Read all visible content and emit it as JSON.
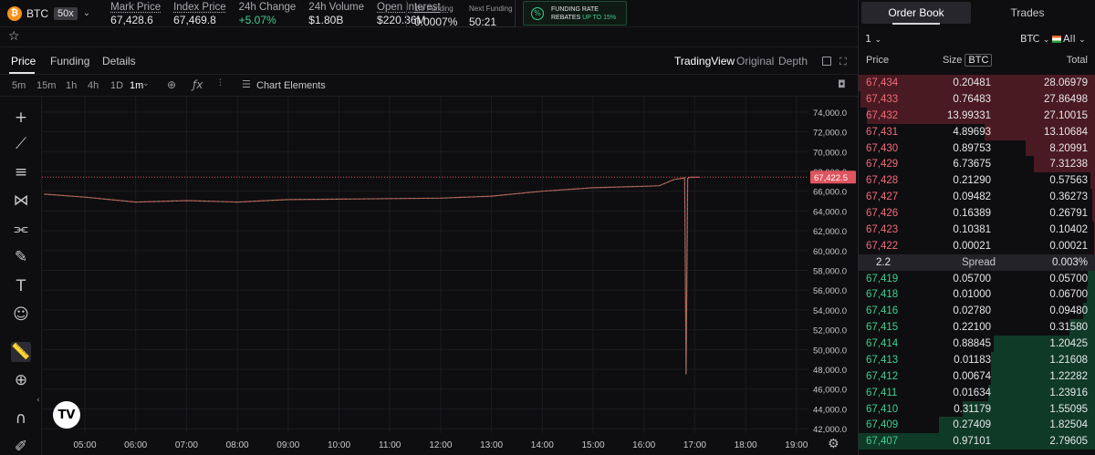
{
  "header": {
    "asset": "BTC",
    "leverage": "50x",
    "stats": [
      {
        "label": "Mark Price",
        "value": "67,428.6",
        "underline": true
      },
      {
        "label": "Index Price",
        "value": "67,469.8",
        "underline": true
      },
      {
        "label": "24h Change",
        "value": "+5.07%",
        "underline": false,
        "color": "#3ecf8e"
      },
      {
        "label": "24h Volume",
        "value": "$1.80B",
        "underline": false
      },
      {
        "label": "Open Interest",
        "value": "$220.36M",
        "underline": true
      }
    ],
    "funding_label": "1hr Funding",
    "funding_value": "0.0007%",
    "next_funding_label": "Next Funding",
    "next_funding_value": "50:21",
    "promo_line1": "FUNDING RATE",
    "promo_line2_prefix": "REBATES ",
    "promo_line2_highlight": "UP TO 15%"
  },
  "tabs": {
    "items": [
      "Price",
      "Funding",
      "Details"
    ],
    "views": [
      "TradingView",
      "Original",
      "Depth"
    ]
  },
  "toolbar": {
    "timeframes": [
      "5m",
      "15m",
      "1h",
      "4h",
      "1D",
      "1m"
    ],
    "active_timeframe": "1m",
    "chart_elements_label": "Chart Elements"
  },
  "chart_data": {
    "type": "line",
    "last_price_label": "67,422.5",
    "last_price": 67422.5,
    "ylim": [
      41000,
      75000
    ],
    "y_ticks": [
      42000,
      44000,
      46000,
      48000,
      50000,
      52000,
      54000,
      56000,
      58000,
      60000,
      62000,
      64000,
      66000,
      68000,
      70000,
      72000,
      74000
    ],
    "y_tick_labels": [
      "42,000.0",
      "44,000.0",
      "46,000.0",
      "48,000.0",
      "50,000.0",
      "52,000.0",
      "54,000.0",
      "56,000.0",
      "58,000.0",
      "60,000.0",
      "62,000.0",
      "64,000.0",
      "66,000.0",
      "68,000.0",
      "70,000.0",
      "72,000.0",
      "74,000.0"
    ],
    "x_tick_labels": [
      "05:00",
      "06:00",
      "07:00",
      "08:00",
      "09:00",
      "10:00",
      "11:00",
      "12:00",
      "13:00",
      "14:00",
      "15:00",
      "16:00",
      "17:00",
      "18:00",
      "19:00"
    ],
    "x_hours": [
      4.2,
      5,
      6,
      7,
      8,
      9,
      10,
      11,
      12,
      13,
      14,
      15,
      16,
      16.3,
      16.6,
      16.75,
      16.8,
      16.83,
      16.86,
      16.9,
      17.1
    ],
    "series_close": [
      65700,
      65400,
      64900,
      65050,
      64900,
      65150,
      65200,
      65250,
      65300,
      65500,
      66000,
      66350,
      66500,
      66550,
      67200,
      67300,
      67350,
      47500,
      67300,
      67400,
      67420
    ],
    "grid": true
  },
  "orderbook": {
    "tabs": [
      "Order Book",
      "Trades"
    ],
    "group": "1",
    "unit": "BTC",
    "filter": "All",
    "headers": {
      "price": "Price",
      "size": "Size",
      "size_unit": "BTC",
      "total": "Total"
    },
    "asks": [
      {
        "price": "67,434",
        "size": "0.20481",
        "total": "28.06979",
        "depth": 1.0
      },
      {
        "price": "67,433",
        "size": "0.76483",
        "total": "27.86498",
        "depth": 0.993
      },
      {
        "price": "67,432",
        "size": "13.99331",
        "total": "27.10015",
        "depth": 0.965
      },
      {
        "price": "67,431",
        "size": "4.89693",
        "total": "13.10684",
        "depth": 0.467
      },
      {
        "price": "67,430",
        "size": "0.89753",
        "total": "8.20991",
        "depth": 0.292
      },
      {
        "price": "67,429",
        "size": "6.73675",
        "total": "7.31238",
        "depth": 0.26
      },
      {
        "price": "67,428",
        "size": "0.21290",
        "total": "0.57563",
        "depth": 0.02
      },
      {
        "price": "67,427",
        "size": "0.09482",
        "total": "0.36273",
        "depth": 0.013
      },
      {
        "price": "67,426",
        "size": "0.16389",
        "total": "0.26791",
        "depth": 0.01
      },
      {
        "price": "67,423",
        "size": "0.10381",
        "total": "0.10402",
        "depth": 0.004
      },
      {
        "price": "67,422",
        "size": "0.00021",
        "total": "0.00021",
        "depth": 0.002
      }
    ],
    "spread": {
      "value": "2.2",
      "label": "Spread",
      "pct": "0.003%"
    },
    "bids": [
      {
        "price": "67,419",
        "size": "0.05700",
        "total": "0.05700",
        "depth": 0.03
      },
      {
        "price": "67,418",
        "size": "0.01000",
        "total": "0.06700",
        "depth": 0.035
      },
      {
        "price": "67,416",
        "size": "0.02780",
        "total": "0.09480",
        "depth": 0.05
      },
      {
        "price": "67,415",
        "size": "0.22100",
        "total": "0.31580",
        "depth": 0.11
      },
      {
        "price": "67,414",
        "size": "0.88845",
        "total": "1.20425",
        "depth": 0.43
      },
      {
        "price": "67,413",
        "size": "0.01183",
        "total": "1.21608",
        "depth": 0.44
      },
      {
        "price": "67,412",
        "size": "0.00674",
        "total": "1.22282",
        "depth": 0.44
      },
      {
        "price": "67,411",
        "size": "0.01634",
        "total": "1.23916",
        "depth": 0.45
      },
      {
        "price": "67,410",
        "size": "0.31179",
        "total": "1.55095",
        "depth": 0.56
      },
      {
        "price": "67,409",
        "size": "0.27409",
        "total": "1.82504",
        "depth": 0.66
      },
      {
        "price": "67,407",
        "size": "0.97101",
        "total": "2.79605",
        "depth": 1.0
      }
    ]
  }
}
